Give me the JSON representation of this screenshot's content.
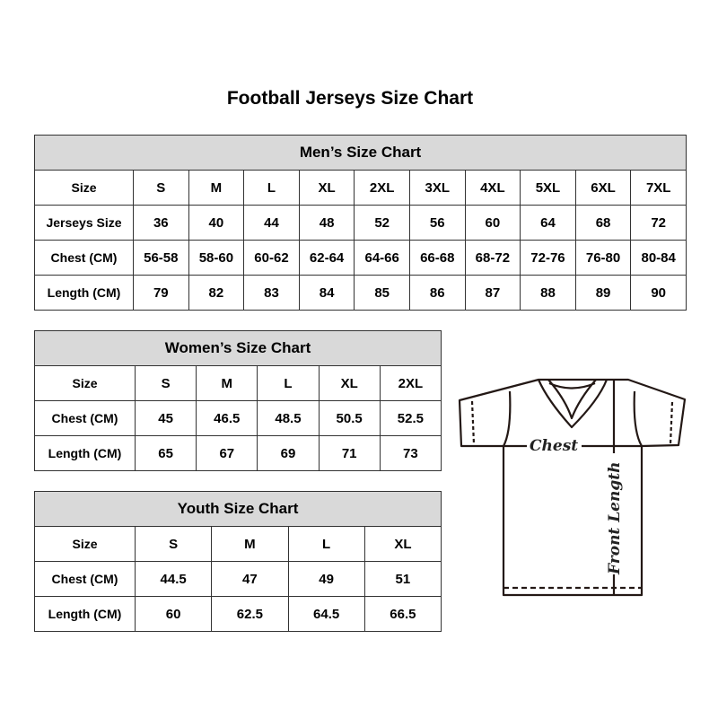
{
  "title": "Football Jerseys Size Chart",
  "men": {
    "heading": "Men’s Size Chart",
    "rows": [
      [
        "Size",
        "S",
        "M",
        "L",
        "XL",
        "2XL",
        "3XL",
        "4XL",
        "5XL",
        "6XL",
        "7XL"
      ],
      [
        "Jerseys Size",
        "36",
        "40",
        "44",
        "48",
        "52",
        "56",
        "60",
        "64",
        "68",
        "72"
      ],
      [
        "Chest (CM)",
        "56-58",
        "58-60",
        "60-62",
        "62-64",
        "64-66",
        "66-68",
        "68-72",
        "72-76",
        "76-80",
        "80-84"
      ],
      [
        "Length (CM)",
        "79",
        "82",
        "83",
        "84",
        "85",
        "86",
        "87",
        "88",
        "89",
        "90"
      ]
    ]
  },
  "women": {
    "heading": "Women’s Size Chart",
    "rows": [
      [
        "Size",
        "S",
        "M",
        "L",
        "XL",
        "2XL"
      ],
      [
        "Chest (CM)",
        "45",
        "46.5",
        "48.5",
        "50.5",
        "52.5"
      ],
      [
        "Length (CM)",
        "65",
        "67",
        "69",
        "71",
        "73"
      ]
    ]
  },
  "youth": {
    "heading": "Youth Size Chart",
    "rows": [
      [
        "Size",
        "S",
        "M",
        "L",
        "XL"
      ],
      [
        "Chest (CM)",
        "44.5",
        "47",
        "49",
        "51"
      ],
      [
        "Length (CM)",
        "60",
        "62.5",
        "64.5",
        "66.5"
      ]
    ]
  },
  "diagram": {
    "chest_label": "Chest",
    "length_label": "Front Length"
  },
  "colors": {
    "header_bg": "#d9d9d9",
    "border": "#333333",
    "outline": "#231815"
  }
}
